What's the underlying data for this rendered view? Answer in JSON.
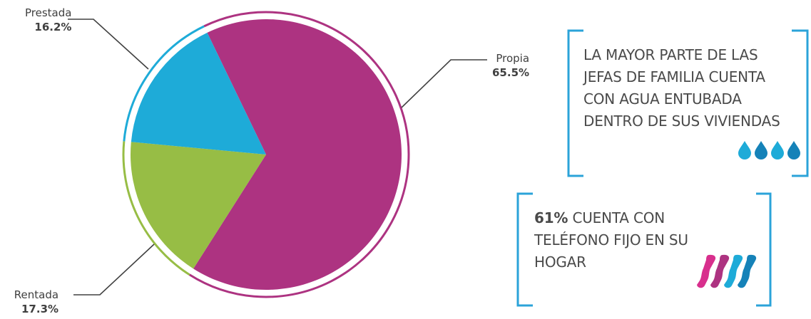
{
  "chart_data": {
    "type": "pie",
    "slices": [
      {
        "label": "Propia",
        "value": 65.5,
        "value_label": "65.5%",
        "color": "#ad3381"
      },
      {
        "label": "Rentada",
        "value": 17.3,
        "value_label": "17.3%",
        "color": "#97bd45"
      },
      {
        "label": "Prestada",
        "value": 16.2,
        "value_label": "16.2%",
        "color": "#1eabd8"
      }
    ],
    "title": "",
    "legend": "none"
  },
  "callouts": {
    "water": {
      "text": "LA MAYOR PARTE DE LAS JEFAS DE FAMILIA CUENTA CON AGUA ENTUBADA DENTRO DE SUS VIVIENDAS",
      "lines": [
        "LA MAYOR PARTE DE LAS",
        "JEFAS DE FAMILIA CUENTA",
        "CON AGUA ENTUBADA",
        "DENTRO DE SUS VIVIENDAS"
      ],
      "icon": "water-drop-icon",
      "icon_colors": [
        "#1eabd8",
        "#1582b8",
        "#1eabd8",
        "#1582b8"
      ]
    },
    "phone": {
      "highlight": "61%",
      "lines_after": [
        " CUENTA CON",
        "TELÉFONO FIJO EN SU",
        "HOGAR"
      ],
      "icon": "phone-handset-icon",
      "icon_colors": [
        "#d82f8d",
        "#ad3381",
        "#1eabd8",
        "#1582b8"
      ]
    }
  },
  "colors": {
    "bracket": "#2ba3d9",
    "text": "#4a4a4a",
    "leader": "#404040"
  }
}
